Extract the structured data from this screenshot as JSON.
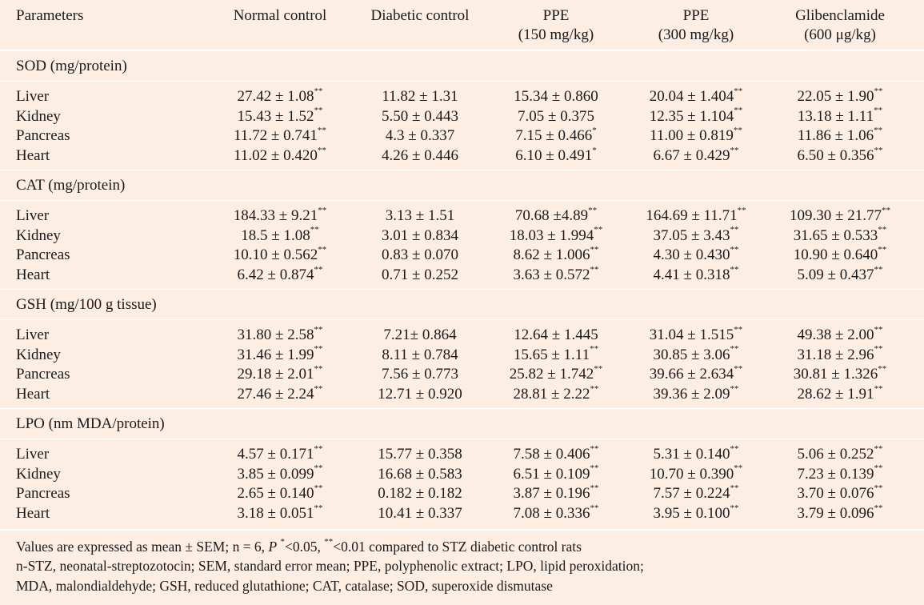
{
  "headers": {
    "parameters": "Parameters",
    "col1": [
      "Normal control"
    ],
    "col2": [
      "Diabetic control"
    ],
    "col3": [
      "PPE",
      "(150 mg/kg)"
    ],
    "col4": [
      "PPE",
      "(300 mg/kg)"
    ],
    "col5": [
      "Glibenclamide",
      "(600 μg/kg)"
    ]
  },
  "sections": [
    {
      "title": "SOD (mg/protein)",
      "rows": [
        {
          "label": "Liver",
          "cells": [
            [
              "27.42 ± 1.08",
              "**"
            ],
            [
              "11.82 ± 1.31",
              ""
            ],
            [
              "15.34 ± 0.860",
              ""
            ],
            [
              "20.04 ± 1.404",
              "**"
            ],
            [
              "22.05 ± 1.90",
              "**"
            ]
          ]
        },
        {
          "label": "Kidney",
          "cells": [
            [
              "15.43 ± 1.52",
              "**"
            ],
            [
              "5.50 ± 0.443",
              ""
            ],
            [
              "7.05 ± 0.375",
              ""
            ],
            [
              "12.35 ± 1.104",
              "**"
            ],
            [
              "13.18 ± 1.11",
              "**"
            ]
          ]
        },
        {
          "label": "Pancreas",
          "cells": [
            [
              "11.72 ± 0.741",
              "**"
            ],
            [
              "4.3 ± 0.337",
              ""
            ],
            [
              "7.15 ± 0.466",
              "*"
            ],
            [
              "11.00 ± 0.819",
              "**"
            ],
            [
              "11.86 ± 1.06",
              "**"
            ]
          ]
        },
        {
          "label": "Heart",
          "cells": [
            [
              "11.02 ± 0.420",
              "**"
            ],
            [
              "4.26 ± 0.446",
              ""
            ],
            [
              "6.10 ± 0.491",
              "*"
            ],
            [
              "6.67 ± 0.429",
              "**"
            ],
            [
              "6.50 ± 0.356",
              "**"
            ]
          ]
        }
      ]
    },
    {
      "title": "CAT (mg/protein)",
      "rows": [
        {
          "label": "Liver",
          "cells": [
            [
              "184.33 ± 9.21",
              "**"
            ],
            [
              "3.13 ± 1.51",
              ""
            ],
            [
              "70.68 ±4.89",
              "**"
            ],
            [
              "164.69 ± 11.71",
              "**"
            ],
            [
              "109.30 ± 21.77",
              "**"
            ]
          ]
        },
        {
          "label": "Kidney",
          "cells": [
            [
              "18.5 ± 1.08",
              "**"
            ],
            [
              "3.01 ± 0.834",
              ""
            ],
            [
              "18.03 ± 1.994",
              "**"
            ],
            [
              "37.05 ± 3.43",
              "**"
            ],
            [
              "31.65 ± 0.533",
              "**"
            ]
          ]
        },
        {
          "label": "Pancreas",
          "cells": [
            [
              "10.10 ± 0.562",
              "**"
            ],
            [
              "0.83 ± 0.070",
              ""
            ],
            [
              "8.62 ± 1.006",
              "**"
            ],
            [
              "4.30 ± 0.430",
              "**"
            ],
            [
              "10.90 ± 0.640",
              "**"
            ]
          ]
        },
        {
          "label": "Heart",
          "cells": [
            [
              "6.42 ± 0.874",
              "**"
            ],
            [
              "0.71 ± 0.252",
              ""
            ],
            [
              "3.63 ± 0.572",
              "**"
            ],
            [
              "4.41 ± 0.318",
              "**"
            ],
            [
              "5.09 ± 0.437",
              "**"
            ]
          ]
        }
      ]
    },
    {
      "title": "GSH (mg/100 g tissue)",
      "rows": [
        {
          "label": "Liver",
          "cells": [
            [
              "31.80 ± 2.58",
              "**"
            ],
            [
              "7.21± 0.864",
              ""
            ],
            [
              "12.64 ± 1.445",
              ""
            ],
            [
              "31.04 ± 1.515",
              "**"
            ],
            [
              "49.38 ± 2.00",
              "**"
            ]
          ]
        },
        {
          "label": "Kidney",
          "cells": [
            [
              "31.46 ± 1.99",
              "**"
            ],
            [
              "8.11 ± 0.784",
              ""
            ],
            [
              "15.65 ± 1.11",
              "**"
            ],
            [
              "30.85 ± 3.06",
              "**"
            ],
            [
              "31.18 ± 2.96",
              "**"
            ]
          ]
        },
        {
          "label": "Pancreas",
          "cells": [
            [
              "29.18 ± 2.01",
              "**"
            ],
            [
              "7.56 ± 0.773",
              ""
            ],
            [
              "25.82 ± 1.742",
              "**"
            ],
            [
              "39.66 ± 2.634",
              "**"
            ],
            [
              "30.81 ± 1.326",
              "**"
            ]
          ]
        },
        {
          "label": "Heart",
          "cells": [
            [
              "27.46 ± 2.24",
              "**"
            ],
            [
              "12.71 ± 0.920",
              ""
            ],
            [
              "28.81 ± 2.22",
              "**"
            ],
            [
              "39.36 ± 2.09",
              "**"
            ],
            [
              "28.62 ± 1.91",
              "**"
            ]
          ]
        }
      ]
    },
    {
      "title": "LPO (nm MDA/protein)",
      "rows": [
        {
          "label": "Liver",
          "cells": [
            [
              "4.57 ± 0.171",
              "**"
            ],
            [
              "15.77 ± 0.358",
              ""
            ],
            [
              "7.58 ± 0.406",
              "**"
            ],
            [
              "5.31 ± 0.140",
              "**"
            ],
            [
              "5.06 ± 0.252",
              "**"
            ]
          ]
        },
        {
          "label": "Kidney",
          "cells": [
            [
              "3.85 ± 0.099",
              "**"
            ],
            [
              "16.68 ± 0.583",
              ""
            ],
            [
              "6.51 ± 0.109",
              "**"
            ],
            [
              "10.70 ± 0.390",
              "**"
            ],
            [
              "7.23 ± 0.139",
              "**"
            ]
          ]
        },
        {
          "label": "Pancreas",
          "cells": [
            [
              "2.65 ± 0.140",
              "**"
            ],
            [
              "0.182 ± 0.182",
              ""
            ],
            [
              "3.87 ± 0.196",
              "**"
            ],
            [
              "7.57 ± 0.224",
              "**"
            ],
            [
              "3.70 ± 0.076",
              "**"
            ]
          ]
        },
        {
          "label": "Heart",
          "cells": [
            [
              "3.18 ± 0.051",
              "**"
            ],
            [
              "10.41 ± 0.337",
              ""
            ],
            [
              "7.08 ± 0.336",
              "**"
            ],
            [
              "3.95 ± 0.100",
              "**"
            ],
            [
              "3.79 ± 0.096",
              "**"
            ]
          ]
        }
      ]
    }
  ],
  "footnotes": {
    "line1": {
      "before": "Values are expressed as mean ± SEM; n = 6, ",
      "p": "P",
      "sig1": "*",
      "mid": "<0.05, ",
      "sig2": "**",
      "after": "<0.01 compared to STZ diabetic control rats"
    },
    "line2": "n-STZ, neonatal-streptozotocin; SEM, standard error mean; PPE, polyphenolic extract; LPO, lipid peroxidation;",
    "line3": "MDA, malondialdehyde; GSH, reduced glutathione; CAT, catalase; SOD, superoxide dismutase"
  }
}
